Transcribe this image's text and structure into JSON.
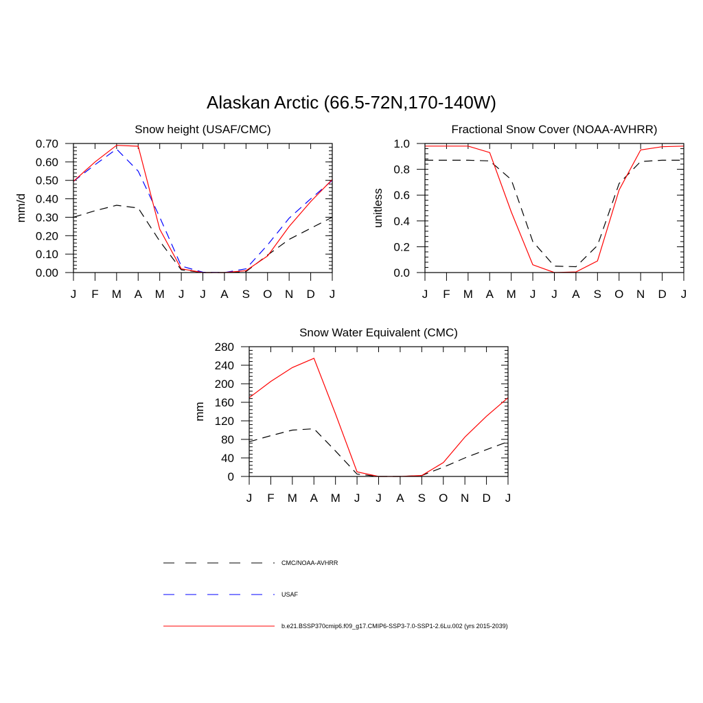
{
  "figure": {
    "title": "Alaskan Arctic (66.5-72N,170-140W)"
  },
  "months": [
    "J",
    "F",
    "M",
    "A",
    "M",
    "J",
    "J",
    "A",
    "S",
    "O",
    "N",
    "D",
    "J"
  ],
  "chart_data": [
    {
      "type": "line",
      "title": "Snow height (USAF/CMC)",
      "xlabel": "",
      "ylabel": "mm/d",
      "ylim": [
        0,
        0.7
      ],
      "yticks": [
        "0.00",
        "0.10",
        "0.20",
        "0.30",
        "0.40",
        "0.50",
        "0.60",
        "0.70"
      ],
      "categories": [
        "J",
        "F",
        "M",
        "A",
        "M",
        "J",
        "J",
        "A",
        "S",
        "O",
        "N",
        "D",
        "J"
      ],
      "series": [
        {
          "name": "CMC/NOAA-AVHRR",
          "color": "#000000",
          "dash": "dashed",
          "values": [
            0.3,
            0.335,
            0.365,
            0.35,
            0.17,
            0.015,
            0.0,
            0.0,
            0.005,
            0.095,
            0.18,
            0.24,
            0.3
          ]
        },
        {
          "name": "USAF",
          "color": "#0000ff",
          "dash": "dashed",
          "values": [
            0.495,
            0.585,
            0.67,
            0.55,
            0.3,
            0.035,
            0.002,
            0.0,
            0.02,
            0.15,
            0.295,
            0.4,
            0.5
          ]
        },
        {
          "name": "b.e21.BSSP370cmip6.f09_g17.CMIP6-SSP3-7.0-SSP1-2.6Lu.002 (yrs 2015-2039)",
          "color": "#ff0000",
          "dash": "solid",
          "values": [
            0.495,
            0.6,
            0.69,
            0.685,
            0.235,
            0.02,
            0.0,
            0.0,
            0.01,
            0.09,
            0.25,
            0.385,
            0.505
          ]
        }
      ]
    },
    {
      "type": "line",
      "title": "Fractional Snow Cover (NOAA-AVHRR)",
      "xlabel": "",
      "ylabel": "unitless",
      "ylim": [
        0,
        1.0
      ],
      "yticks": [
        "0.0",
        "0.2",
        "0.4",
        "0.6",
        "0.8",
        "1.0"
      ],
      "categories": [
        "J",
        "F",
        "M",
        "A",
        "M",
        "J",
        "J",
        "A",
        "S",
        "O",
        "N",
        "D",
        "J"
      ],
      "series": [
        {
          "name": "CMC/NOAA-AVHRR",
          "color": "#000000",
          "dash": "dashed",
          "values": [
            0.87,
            0.87,
            0.87,
            0.865,
            0.72,
            0.24,
            0.05,
            0.045,
            0.21,
            0.69,
            0.86,
            0.87,
            0.87
          ]
        },
        {
          "name": "b.e21.BSSP370cmip6.f09_g17.CMIP6-SSP3-7.0-SSP1-2.6Lu.002 (yrs 2015-2039)",
          "color": "#ff0000",
          "dash": "solid",
          "values": [
            0.98,
            0.98,
            0.98,
            0.93,
            0.47,
            0.06,
            0.0,
            0.005,
            0.09,
            0.64,
            0.95,
            0.975,
            0.98
          ]
        }
      ]
    },
    {
      "type": "line",
      "title": "Snow Water Equivalent (CMC)",
      "xlabel": "",
      "ylabel": "mm",
      "ylim": [
        0,
        280
      ],
      "yticks": [
        "0",
        "40",
        "80",
        "120",
        "160",
        "200",
        "240",
        "280"
      ],
      "categories": [
        "J",
        "F",
        "M",
        "A",
        "M",
        "J",
        "J",
        "A",
        "S",
        "O",
        "N",
        "D",
        "J"
      ],
      "series": [
        {
          "name": "CMC/NOAA-AVHRR",
          "color": "#000000",
          "dash": "dashed",
          "values": [
            75,
            88,
            100,
            103,
            55,
            5,
            0,
            0,
            2,
            20,
            40,
            58,
            75
          ]
        },
        {
          "name": "b.e21.BSSP370cmip6.f09_g17.CMIP6-SSP3-7.0-SSP1-2.6Lu.002 (yrs 2015-2039)",
          "color": "#ff0000",
          "dash": "solid",
          "values": [
            170,
            205,
            235,
            255,
            135,
            10,
            0,
            0,
            2,
            30,
            85,
            130,
            170
          ]
        }
      ]
    }
  ],
  "legend": [
    {
      "label": "CMC/NOAA-AVHRR",
      "color": "#000000",
      "dash": "dashed"
    },
    {
      "label": "USAF",
      "color": "#0000ff",
      "dash": "dashed"
    },
    {
      "label": "b.e21.BSSP370cmip6.f09_g17.CMIP6-SSP3-7.0-SSP1-2.6Lu.002 (yrs 2015-2039)",
      "color": "#ff0000",
      "dash": "solid"
    }
  ]
}
